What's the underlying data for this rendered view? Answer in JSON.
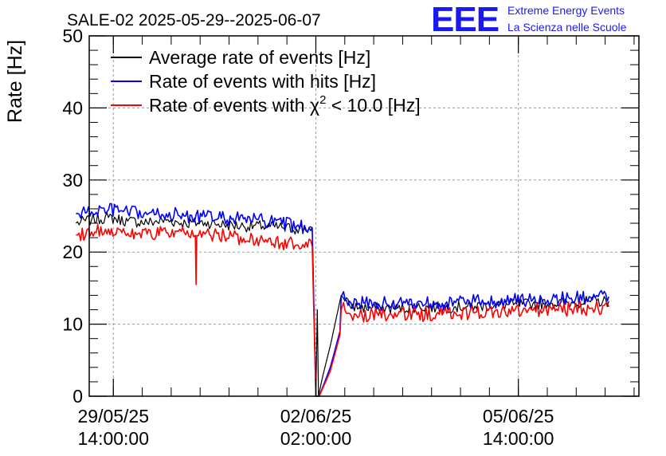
{
  "header": {
    "title": "SALE-02 2025-05-29--2025-06-07",
    "logo_text": "EEE",
    "logo_line1": "Extreme Energy Events",
    "logo_line2": "La Scienza nelle Scuole"
  },
  "colors": {
    "average": "#000000",
    "hits": "#0000ff",
    "chi2": "#ff0000",
    "logo": "#1a1af0",
    "grid": "#9a9a9a"
  },
  "chart_data": {
    "type": "line",
    "title": "SALE-02 2025-05-29--2025-06-07",
    "ylabel": "Rate [Hz]",
    "xlabel": "",
    "ylim": [
      0,
      50
    ],
    "yticks": [
      0,
      10,
      20,
      30,
      40,
      50
    ],
    "x_unit": "hours since 2025-05-29 00:00",
    "xlim": [
      4.0,
      232.0
    ],
    "xticks": [
      {
        "x": 14,
        "label_line1": "29/05/25",
        "label_line2": "14:00:00"
      },
      {
        "x": 98,
        "label_line1": "02/06/25",
        "label_line2": "02:00:00"
      },
      {
        "x": 182,
        "label_line1": "05/06/25",
        "label_line2": "14:00:00"
      }
    ],
    "grid": true,
    "legend_position": "top-left",
    "series": [
      {
        "name": "Average rate of events [Hz]",
        "name_prefix": "Average rate of events [Hz]",
        "color": "#000000",
        "x": [
          -1.5,
          5,
          12,
          20,
          28,
          36,
          44,
          52,
          60,
          68,
          76,
          84,
          90,
          96.5,
          98,
          98.6,
          99.1,
          101,
          104,
          108.5,
          109.5,
          110,
          112,
          116,
          124,
          132,
          140,
          148,
          156,
          164,
          172,
          180,
          188,
          196,
          204,
          212,
          219.5
        ],
        "y": [
          24,
          24.5,
          24.8,
          24.3,
          24.1,
          24.4,
          24.0,
          24.1,
          23.8,
          23.6,
          23.6,
          23.4,
          23.2,
          23.3,
          0,
          12,
          0,
          3,
          7,
          14,
          13.6,
          13.2,
          12.6,
          12.3,
          12.2,
          12.2,
          12.4,
          12.3,
          12.4,
          12.5,
          12.6,
          12.7,
          12.8,
          12.9,
          13.0,
          13.1,
          13.2
        ]
      },
      {
        "name": "Rate of events with hits [Hz]",
        "name_prefix": "Rate of events with hits [Hz]",
        "color": "#0000ff",
        "x": [
          -1.5,
          5,
          12,
          20,
          28,
          36,
          44,
          52,
          60,
          68,
          76,
          84,
          90,
          96.5,
          98,
          98.6,
          99.4,
          104,
          108,
          108.5,
          109.5,
          110,
          112,
          116,
          124,
          132,
          140,
          148,
          156,
          164,
          172,
          180,
          188,
          196,
          204,
          212,
          219.5
        ],
        "y": [
          25.3,
          25.6,
          25.9,
          25.5,
          25.2,
          25.3,
          25.0,
          24.9,
          24.7,
          24.6,
          24.3,
          23.9,
          23.6,
          23.4,
          0,
          0,
          0,
          4,
          9,
          13.8,
          14.5,
          13.6,
          13.2,
          12.9,
          12.8,
          12.9,
          13.0,
          13.0,
          13.0,
          13.1,
          13.2,
          13.3,
          13.4,
          13.5,
          13.6,
          13.7,
          13.8
        ]
      },
      {
        "name": "Rate of events with chi2 < 10.0 [Hz]",
        "name_prefix": "Rate of events with χ",
        "name_sup": "2",
        "name_suffix": " < 10.0 [Hz]",
        "color": "#ff0000",
        "x": [
          -1.5,
          5,
          12,
          20,
          28,
          36,
          44,
          48,
          48.3,
          48.6,
          52,
          60,
          68,
          76,
          84,
          90,
          96.5,
          98,
          98.6,
          99.4,
          104,
          108,
          108.5,
          109.5,
          110,
          112,
          116,
          124,
          132,
          140,
          148,
          156,
          164,
          172,
          180,
          188,
          196,
          204,
          212,
          219.5
        ],
        "y": [
          22.4,
          22.8,
          23.2,
          22.6,
          22.5,
          22.7,
          22.4,
          22.3,
          15.5,
          22.3,
          22.5,
          22.3,
          21.9,
          21.7,
          21.3,
          21.0,
          20.8,
          0,
          0,
          0,
          3.5,
          8.5,
          12.0,
          13.0,
          12.0,
          11.5,
          11.1,
          11.2,
          11.3,
          11.3,
          11.4,
          11.5,
          11.6,
          11.7,
          11.8,
          11.9,
          12.0,
          12.1,
          12.2,
          12.4
        ]
      }
    ]
  }
}
